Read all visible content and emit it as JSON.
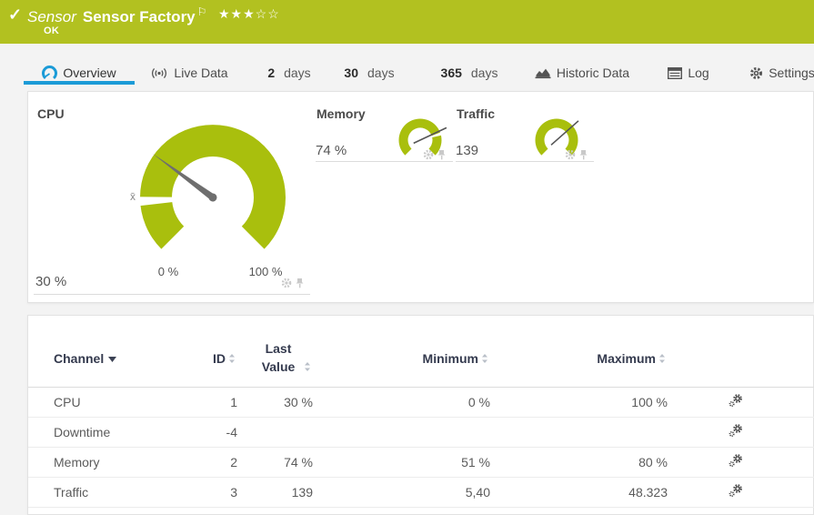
{
  "header": {
    "status_icon": "✓",
    "kind": "Sensor",
    "name": "Sensor Factory",
    "flag": "⚐",
    "stars_filled": "★★★",
    "stars_empty": "☆☆",
    "status": "OK"
  },
  "tabs": {
    "overview": {
      "label": "Overview",
      "selected": true
    },
    "live_data": {
      "label": "Live Data"
    },
    "d2": {
      "num": "2",
      "unit": "days"
    },
    "d30": {
      "num": "30",
      "unit": "days"
    },
    "d365": {
      "num": "365",
      "unit": "days"
    },
    "historic": {
      "label": "Historic Data"
    },
    "log": {
      "label": "Log"
    },
    "settings": {
      "label": "Settings"
    }
  },
  "gauges": {
    "cpu": {
      "label": "CPU",
      "value": "30 %",
      "min_label": "0 %",
      "max_label": "100 %",
      "percent": 30,
      "mean_symbol": "x̄"
    },
    "memory": {
      "label": "Memory",
      "value": "74 %",
      "percent": 74
    },
    "traffic": {
      "label": "Traffic",
      "value": "139",
      "percent": 68
    }
  },
  "table": {
    "columns": [
      "Channel",
      "ID",
      "Last Value",
      "Minimum",
      "Maximum"
    ],
    "rows": [
      {
        "channel": "CPU",
        "id": "1",
        "last": "30 %",
        "min": "0 %",
        "max": "100 %"
      },
      {
        "channel": "Downtime",
        "id": "-4",
        "last": "",
        "min": "",
        "max": ""
      },
      {
        "channel": "Memory",
        "id": "2",
        "last": "74 %",
        "min": "51 %",
        "max": "80 %"
      },
      {
        "channel": "Traffic",
        "id": "3",
        "last": "139",
        "min": "5,40",
        "max": "48.323"
      }
    ]
  },
  "colors": {
    "header-green": "#b2c120",
    "gauge-green": "#a9bf0d",
    "accent-blue": "#1b9bd7",
    "table-header-text": "#343a4e"
  }
}
